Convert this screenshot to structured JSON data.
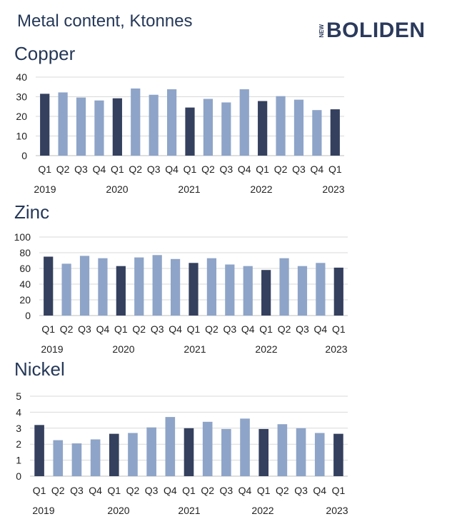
{
  "page_title": "Metal content, Ktonnes",
  "logo": {
    "prefix": "NEW",
    "name": "BOLIDEN"
  },
  "colors": {
    "q1_bar": "#34405e",
    "other_bar": "#8ea4c8",
    "gridline": "#d9d9d9",
    "axis": "#bfbfbf"
  },
  "chart_data": [
    {
      "type": "bar",
      "title": "Copper",
      "categories": [
        "Q1",
        "Q2",
        "Q3",
        "Q4",
        "Q1",
        "Q2",
        "Q3",
        "Q4",
        "Q1",
        "Q2",
        "Q3",
        "Q4",
        "Q1",
        "Q2",
        "Q3",
        "Q4",
        "Q1"
      ],
      "years": [
        "2019",
        "2020",
        "2021",
        "2022",
        "2023"
      ],
      "values": [
        31.5,
        32.2,
        29.6,
        28.1,
        29.2,
        34.2,
        31.0,
        33.8,
        24.5,
        28.9,
        27.1,
        33.8,
        27.8,
        30.3,
        28.5,
        23.2,
        23.6
      ],
      "ylim": [
        0,
        40
      ],
      "yticks": [
        "0",
        "10",
        "20",
        "30",
        "40"
      ],
      "grid": true
    },
    {
      "type": "bar",
      "title": "Zinc",
      "categories": [
        "Q1",
        "Q2",
        "Q3",
        "Q4",
        "Q1",
        "Q2",
        "Q3",
        "Q4",
        "Q1",
        "Q2",
        "Q3",
        "Q4",
        "Q1",
        "Q2",
        "Q3",
        "Q4",
        "Q1"
      ],
      "years": [
        "2019",
        "2020",
        "2021",
        "2022",
        "2023"
      ],
      "values": [
        75,
        66,
        76,
        73,
        63,
        74,
        77,
        72,
        67,
        73,
        65,
        63,
        58,
        73,
        63,
        67,
        61
      ],
      "ylim": [
        0,
        100
      ],
      "yticks": [
        "0",
        "20",
        "40",
        "60",
        "80",
        "100"
      ],
      "grid": true
    },
    {
      "type": "bar",
      "title": "Nickel",
      "categories": [
        "Q1",
        "Q2",
        "Q3",
        "Q4",
        "Q1",
        "Q2",
        "Q3",
        "Q4",
        "Q1",
        "Q2",
        "Q3",
        "Q4",
        "Q1",
        "Q2",
        "Q3",
        "Q4",
        "Q1"
      ],
      "years": [
        "2019",
        "2020",
        "2021",
        "2022",
        "2023"
      ],
      "values": [
        3.2,
        2.25,
        2.05,
        2.3,
        2.65,
        2.7,
        3.05,
        3.7,
        3.0,
        3.4,
        2.95,
        3.6,
        2.95,
        3.25,
        3.0,
        2.7,
        2.65
      ],
      "ylim": [
        0,
        5
      ],
      "yticks": [
        "0",
        "1",
        "2",
        "3",
        "4",
        "5"
      ],
      "grid": true
    }
  ]
}
